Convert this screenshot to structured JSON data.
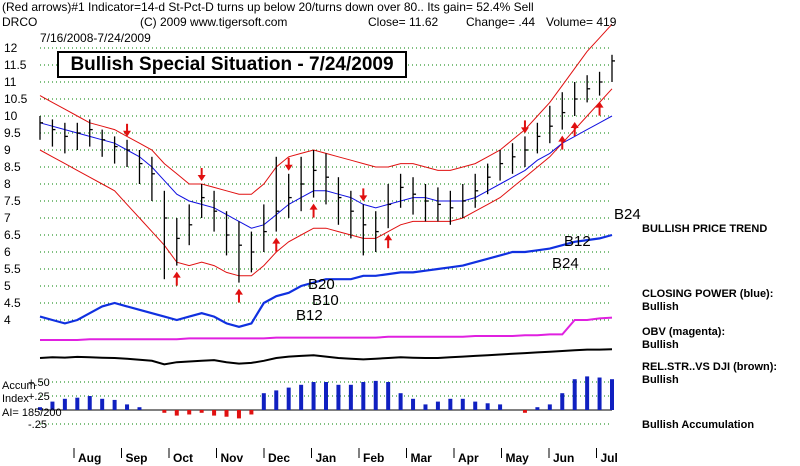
{
  "header": {
    "line1": "(Red arrows)#1 Indicator=14-d St-Pct-D turns up below 20/turns down over 80.. Its gain= 52.4% Sell",
    "symbol": "DRCO",
    "copyright": "(C) 2009 www.tigersoft.com",
    "close": "Close= 11.62",
    "change": "Change= .44",
    "volume": "Volume= 419",
    "date_range": "7/16/2008-7/24/2009"
  },
  "chart_title": "Bullish Special Situation - 7/24/2009",
  "colors": {
    "bands": "#e01010",
    "ma": "#1010e0",
    "price_bars": "#000000",
    "closing_power": "#1030e0",
    "obv": "#e020e0",
    "rel_strength": "#000000",
    "accum": "#1020c0",
    "grid": "#008000",
    "arrows": "#e01010"
  },
  "panel_labels": {
    "price_trend": "BULLISH PRICE TREND",
    "closing_power": "CLOSING POWER (blue):",
    "closing_power_status": "Bullish",
    "obv": "OBV (magenta):",
    "obv_status": "Bullish",
    "rel_str": "REL.STR..VS DJI (brown):",
    "rel_str_status": "Bullish",
    "accum": "Bullish Accumulation"
  },
  "accum_panel": {
    "label1": "Accum",
    "label2": "Index",
    "ai": "AI= 185/200"
  },
  "annotations": [
    {
      "text": "B24",
      "at": "price-trend-end"
    },
    {
      "text": "B12",
      "at": "jun"
    },
    {
      "text": "B24",
      "at": "jun-low"
    },
    {
      "text": "B20",
      "at": "dec"
    },
    {
      "text": "B10",
      "at": "dec"
    },
    {
      "text": "B12",
      "at": "dec-low"
    }
  ],
  "chart_data": {
    "type": "line",
    "x_months": [
      "Aug",
      "Sep",
      "Oct",
      "Nov",
      "Dec",
      "Jan",
      "Feb",
      "Mar",
      "Apr",
      "May",
      "Jun",
      "Jul"
    ],
    "y_ticks": [
      4,
      4.5,
      5,
      5.5,
      6,
      6.5,
      7,
      7.5,
      8,
      8.5,
      9,
      9.5,
      10,
      10.5,
      11,
      11.5,
      12
    ],
    "ylim": [
      4,
      12
    ],
    "price_close": [
      9.8,
      9.6,
      9.4,
      9.5,
      9.6,
      9.3,
      9.1,
      9.0,
      8.6,
      8.3,
      7.0,
      6.4,
      6.8,
      7.6,
      7.2,
      6.5,
      6.2,
      6.0,
      6.6,
      7.2,
      7.6,
      8.0,
      8.4,
      8.2,
      7.6,
      7.2,
      6.8,
      6.6,
      7.4,
      7.9,
      7.7,
      7.5,
      7.4,
      7.3,
      7.5,
      7.8,
      8.2,
      8.6,
      8.8,
      9.0,
      9.4,
      9.7,
      10.1,
      10.5,
      10.8,
      11.0,
      11.62
    ],
    "price_high": [
      10.0,
      9.9,
      9.8,
      9.8,
      9.9,
      9.6,
      9.4,
      9.3,
      9.0,
      8.8,
      7.8,
      7.0,
      7.4,
      8.0,
      7.8,
      7.2,
      6.9,
      6.6,
      7.4,
      8.8,
      8.3,
      8.8,
      9.0,
      8.9,
      8.2,
      7.8,
      7.4,
      7.2,
      8.0,
      8.3,
      8.2,
      8.0,
      7.9,
      7.8,
      8.0,
      8.3,
      8.6,
      9.0,
      9.2,
      9.4,
      9.8,
      10.3,
      10.7,
      11.0,
      11.2,
      11.3,
      11.8
    ],
    "price_low": [
      9.3,
      9.1,
      8.9,
      9.0,
      9.1,
      8.8,
      8.6,
      8.5,
      8.0,
      7.5,
      5.2,
      5.6,
      6.2,
      7.0,
      6.6,
      5.9,
      5.1,
      5.4,
      6.0,
      6.6,
      7.0,
      7.2,
      7.6,
      7.4,
      6.8,
      6.4,
      5.9,
      6.0,
      6.7,
      7.3,
      7.1,
      6.9,
      6.9,
      6.8,
      7.0,
      7.3,
      7.7,
      8.1,
      8.3,
      8.5,
      8.9,
      9.2,
      9.6,
      10.0,
      10.4,
      10.6,
      11.0
    ],
    "upper_band": [
      10.6,
      10.4,
      10.2,
      10.0,
      9.8,
      9.7,
      9.6,
      9.4,
      9.2,
      9.0,
      8.6,
      8.3,
      8.0,
      8.0,
      7.9,
      7.8,
      7.7,
      7.7,
      8.0,
      8.5,
      8.8,
      8.9,
      9.0,
      8.9,
      8.8,
      8.7,
      8.6,
      8.5,
      8.5,
      8.6,
      8.6,
      8.5,
      8.4,
      8.4,
      8.5,
      8.6,
      8.8,
      9.0,
      9.3,
      9.6,
      10.0,
      10.4,
      10.9,
      11.4,
      11.9,
      12.3,
      12.7
    ],
    "lower_band": [
      9.0,
      8.8,
      8.6,
      8.4,
      8.2,
      8.0,
      7.8,
      7.4,
      7.0,
      6.6,
      6.2,
      5.7,
      5.6,
      5.7,
      5.6,
      5.4,
      5.3,
      5.3,
      5.6,
      6.0,
      6.3,
      6.5,
      6.7,
      6.7,
      6.6,
      6.5,
      6.4,
      6.4,
      6.6,
      6.8,
      6.9,
      6.9,
      6.9,
      6.9,
      7.0,
      7.2,
      7.4,
      7.6,
      7.9,
      8.2,
      8.5,
      8.8,
      9.2,
      9.6,
      10.0,
      10.4,
      10.8
    ],
    "ma": [
      9.8,
      9.7,
      9.6,
      9.5,
      9.4,
      9.3,
      9.2,
      9.0,
      8.8,
      8.5,
      8.1,
      7.7,
      7.5,
      7.4,
      7.3,
      7.1,
      6.9,
      6.7,
      6.8,
      7.1,
      7.4,
      7.6,
      7.8,
      7.8,
      7.7,
      7.6,
      7.4,
      7.3,
      7.4,
      7.5,
      7.6,
      7.6,
      7.5,
      7.5,
      7.5,
      7.6,
      7.8,
      8.0,
      8.2,
      8.4,
      8.7,
      8.9,
      9.2,
      9.4,
      9.6,
      9.8,
      10.0
    ],
    "closing_power": [
      4.1,
      4.0,
      3.9,
      4.0,
      4.2,
      4.4,
      4.5,
      4.4,
      4.3,
      4.2,
      4.1,
      4.0,
      4.1,
      4.2,
      4.1,
      3.9,
      3.8,
      3.9,
      4.5,
      4.7,
      4.8,
      5.0,
      5.1,
      5.2,
      5.2,
      5.2,
      5.3,
      5.3,
      5.35,
      5.4,
      5.4,
      5.45,
      5.5,
      5.55,
      5.6,
      5.7,
      5.8,
      5.9,
      6.0,
      6.0,
      6.05,
      6.1,
      6.2,
      6.3,
      6.35,
      6.4,
      6.5
    ],
    "obv_level": [
      0.0,
      0.0,
      0.0,
      0.0,
      0.01,
      0.01,
      0.01,
      0.01,
      0.01,
      0.01,
      0.01,
      0.01,
      0.02,
      0.02,
      0.02,
      0.02,
      0.02,
      0.02,
      0.02,
      0.03,
      0.03,
      0.03,
      0.03,
      0.03,
      0.03,
      0.03,
      0.03,
      0.03,
      0.04,
      0.04,
      0.04,
      0.04,
      0.04,
      0.04,
      0.04,
      0.05,
      0.05,
      0.05,
      0.05,
      0.06,
      0.06,
      0.07,
      0.07,
      0.25,
      0.25,
      0.27,
      0.28
    ],
    "rel_strength": [
      0.0,
      0.05,
      0.03,
      0.08,
      0.06,
      0.02,
      0.0,
      -0.05,
      -0.12,
      -0.2,
      -0.45,
      -0.3,
      -0.25,
      -0.2,
      -0.15,
      -0.3,
      -0.4,
      -0.35,
      -0.2,
      0.0,
      0.1,
      0.15,
      0.2,
      0.1,
      0.0,
      -0.05,
      -0.1,
      -0.05,
      0.0,
      0.05,
      0.02,
      0.0,
      0.0,
      0.05,
      0.1,
      0.15,
      0.2,
      0.25,
      0.3,
      0.35,
      0.4,
      0.45,
      0.5,
      0.55,
      0.6,
      0.6,
      0.62
    ],
    "accum_index": [
      0.05,
      0.15,
      0.2,
      0.22,
      0.25,
      0.2,
      0.18,
      0.1,
      0.05,
      0.0,
      -0.05,
      -0.1,
      -0.08,
      -0.05,
      -0.1,
      -0.12,
      -0.15,
      -0.08,
      0.3,
      0.35,
      0.4,
      0.45,
      0.5,
      0.5,
      0.45,
      0.45,
      0.5,
      0.52,
      0.5,
      0.3,
      0.2,
      0.1,
      0.15,
      0.2,
      0.2,
      0.15,
      0.12,
      0.1,
      0.0,
      -0.05,
      0.05,
      0.1,
      0.3,
      0.55,
      0.6,
      0.58,
      0.55
    ],
    "accum_ticks": [
      "+.50",
      "+.25",
      "0",
      "-.25"
    ],
    "red_arrows_down": [
      7,
      13,
      20,
      26,
      39
    ],
    "red_arrows_up": [
      11,
      16,
      19,
      22,
      28,
      42,
      43,
      45
    ]
  }
}
